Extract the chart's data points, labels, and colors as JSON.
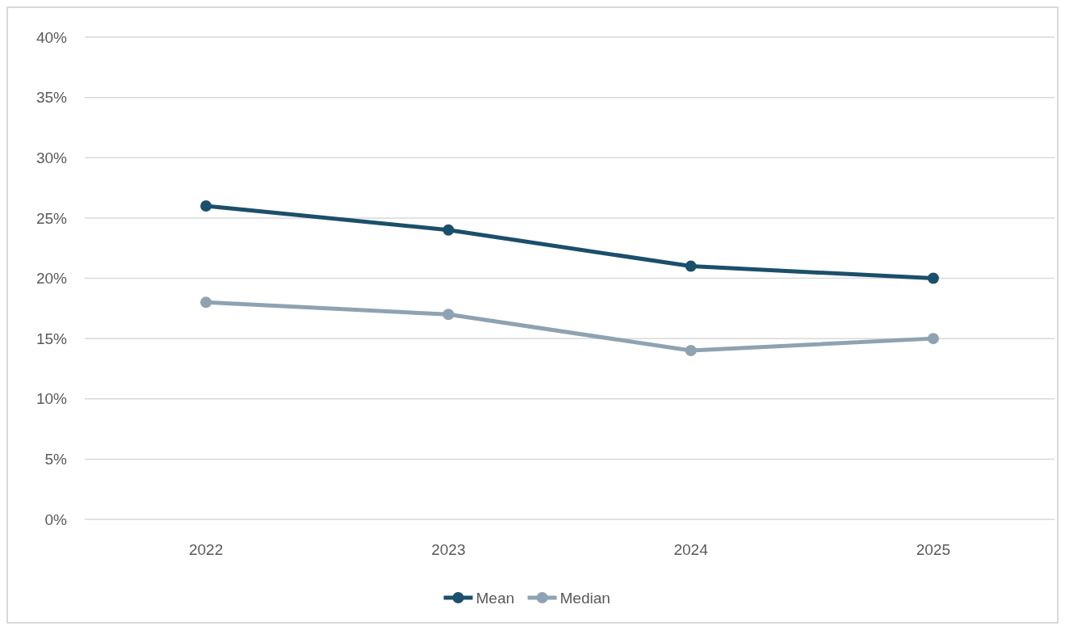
{
  "chart_data": {
    "type": "line",
    "categories": [
      "2022",
      "2023",
      "2024",
      "2025"
    ],
    "series": [
      {
        "name": "Mean",
        "color": "#1b4f6b",
        "values": [
          26,
          24,
          21,
          20
        ]
      },
      {
        "name": "Median",
        "color": "#8ea2b2",
        "values": [
          18,
          17,
          14,
          15
        ]
      }
    ],
    "ylim": [
      0,
      40
    ],
    "yticks": [
      {
        "value": 0,
        "label": "0%"
      },
      {
        "value": 5,
        "label": "5%"
      },
      {
        "value": 10,
        "label": "10%"
      },
      {
        "value": 15,
        "label": "15%"
      },
      {
        "value": 20,
        "label": "20%"
      },
      {
        "value": 25,
        "label": "25%"
      },
      {
        "value": 30,
        "label": "30%"
      },
      {
        "value": 35,
        "label": "35%"
      },
      {
        "value": 40,
        "label": "40%"
      }
    ],
    "grid": "y",
    "legend": "bottom",
    "marker": "circle",
    "line_style": "solid"
  }
}
